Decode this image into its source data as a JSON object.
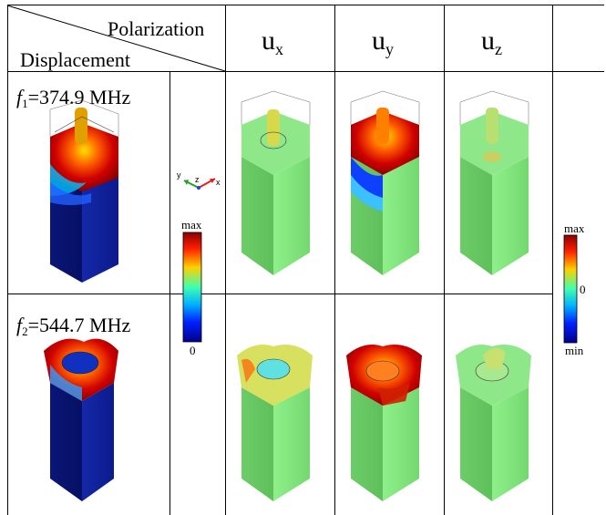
{
  "header": {
    "polarization_label": "Polarization",
    "displacement_label": "Displacement",
    "columns": [
      {
        "base": "u",
        "sub": "x"
      },
      {
        "base": "u",
        "sub": "y"
      },
      {
        "base": "u",
        "sub": "z"
      }
    ]
  },
  "modes": [
    {
      "symbol": "f",
      "index": "1",
      "value": "=374.9 MHz"
    },
    {
      "symbol": "f",
      "index": "2",
      "value": "=544.7 MHz"
    }
  ],
  "triad": {
    "x": "x",
    "y": "y",
    "z": "z"
  },
  "colorbar_magnitude": {
    "max": "max",
    "min": "0"
  },
  "colorbar_signed": {
    "max": "max",
    "mid": "0",
    "min": "min"
  },
  "colors": {
    "jet_top": "#8b0000",
    "jet_bottom": "#00008b",
    "green_body": "#7fe07a",
    "dark_blue_body": "#0c1b8c"
  }
}
